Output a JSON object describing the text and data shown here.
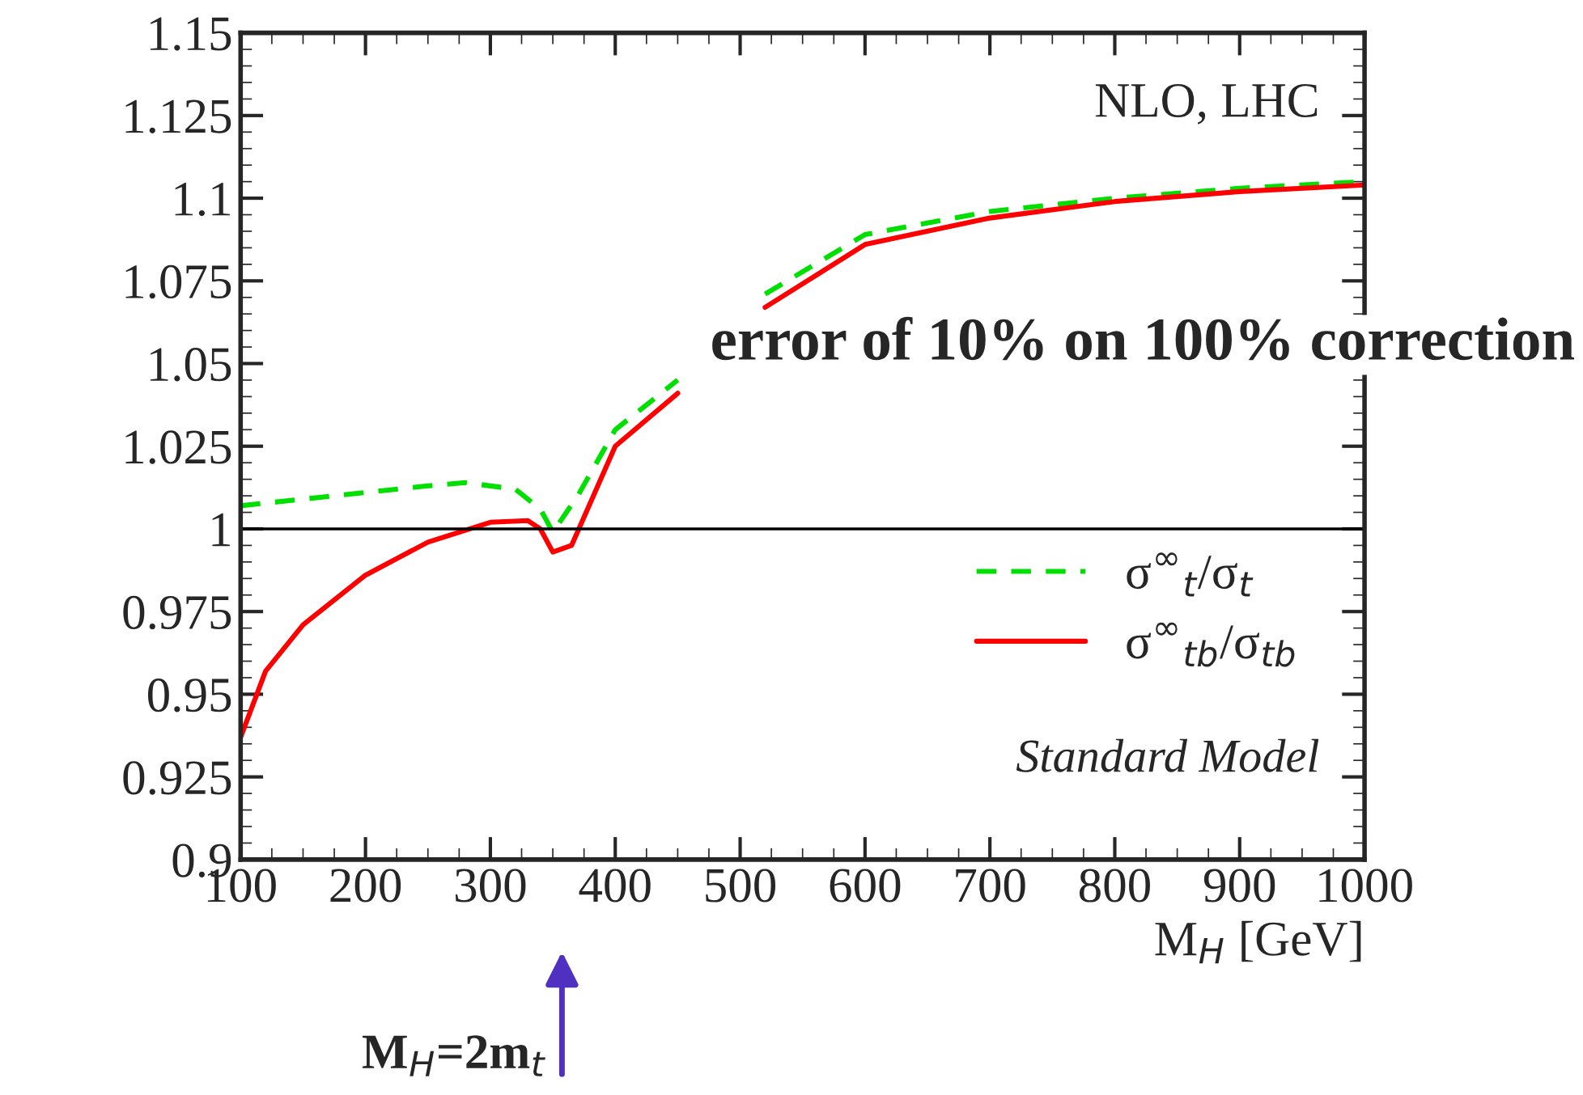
{
  "chart_data": {
    "type": "line",
    "xlabel": "M$_{H}$ [GeV]",
    "xlim": [
      100,
      1000
    ],
    "xticks": [
      100,
      200,
      300,
      400,
      500,
      600,
      700,
      800,
      900,
      1000
    ],
    "ylim": [
      0.9,
      1.15
    ],
    "yticks": [
      0.9,
      0.925,
      0.95,
      0.975,
      1,
      1.025,
      1.05,
      1.075,
      1.1,
      1.125,
      1.15
    ],
    "series": [
      {
        "name": "σ$^{∞}$$_{t}$/σ$_{t}$",
        "color": "#00e000",
        "line_style": "dashed",
        "x": [
          100,
          150,
          200,
          250,
          280,
          320,
          340,
          350,
          370,
          400,
          450,
          500,
          520,
          600,
          700,
          800,
          900,
          1000
        ],
        "values": [
          1.007,
          1.009,
          1.011,
          1.013,
          1.014,
          1.012,
          1.006,
          0.999,
          1.01,
          1.03,
          1.045,
          null,
          1.071,
          1.089,
          1.096,
          1.1,
          1.103,
          1.105
        ]
      },
      {
        "name": "σ$^{∞}$$_{tb}$/σ$_{tb}$",
        "color": "#ff0000",
        "line_style": "solid",
        "x": [
          100,
          120,
          150,
          200,
          250,
          300,
          330,
          340,
          350,
          365,
          400,
          450,
          500,
          520,
          600,
          700,
          800,
          900,
          1000
        ],
        "values": [
          0.937,
          0.957,
          0.971,
          0.986,
          0.996,
          1.002,
          1.0025,
          1.0,
          0.993,
          0.995,
          1.025,
          1.041,
          null,
          1.067,
          1.086,
          1.094,
          1.099,
          1.102,
          1.104
        ]
      }
    ],
    "ref_lines": [
      {
        "axis": "y",
        "value": 1,
        "color": "#000000"
      }
    ],
    "legend": "right",
    "annotations": [
      "NLO, LHC",
      "Standard Model",
      "error of 10% on 100% correction",
      "M$_{H}$=2m$_{t}$"
    ]
  }
}
